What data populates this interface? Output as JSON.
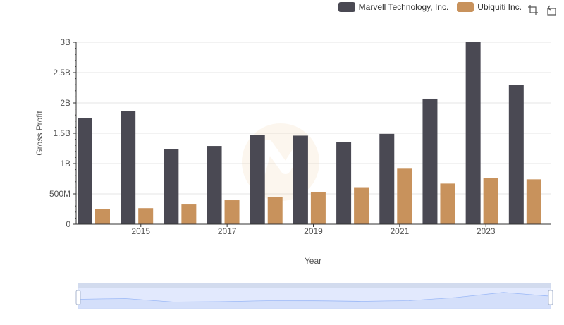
{
  "colors": {
    "marvell": "#4a4953",
    "ubiquiti": "#c8925c",
    "grid": "#e6e6e6",
    "axis": "#333333"
  },
  "legend": {
    "position": "top-right"
  },
  "toolbox": [
    {
      "name": "zoom-icon"
    },
    {
      "name": "reset-icon"
    }
  ],
  "chart_data": {
    "type": "bar",
    "title": "",
    "xlabel": "Year",
    "ylabel": "Gross Profit",
    "ylim": [
      0,
      3000000000
    ],
    "grid": true,
    "categories": [
      "2014",
      "2015",
      "2016",
      "2017",
      "2018",
      "2019",
      "2020",
      "2021",
      "2022",
      "2023",
      "2024"
    ],
    "xtick_labels": [
      "2015",
      "2017",
      "2019",
      "2021",
      "2023"
    ],
    "ytick_labels": [
      "0",
      "500M",
      "1B",
      "1.5B",
      "2B",
      "2.5B",
      "3B"
    ],
    "series": [
      {
        "name": "Marvell Technology, Inc.",
        "values": [
          1750000000,
          1870000000,
          1240000000,
          1290000000,
          1470000000,
          1460000000,
          1360000000,
          1490000000,
          2070000000,
          3000000000,
          2300000000
        ]
      },
      {
        "name": "Ubiquiti Inc.",
        "values": [
          255000000,
          265000000,
          325000000,
          395000000,
          445000000,
          535000000,
          610000000,
          915000000,
          670000000,
          760000000,
          740000000
        ]
      }
    ]
  }
}
